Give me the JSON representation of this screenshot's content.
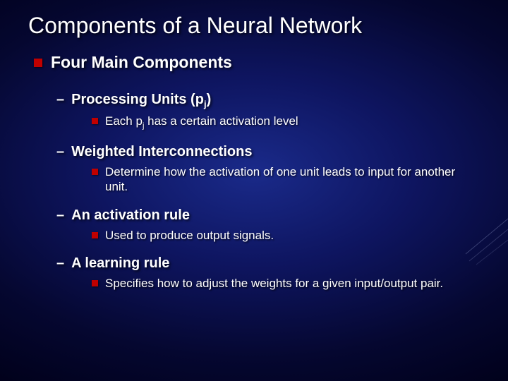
{
  "title": "Components of a Neural Network",
  "heading": "Four Main Components",
  "items": [
    {
      "label": "Processing Units (p<sub>j</sub>)",
      "detail": "Each p<sub>j</sub> has a certain activation level"
    },
    {
      "label": "Weighted Interconnections",
      "detail": "Determine how the activation of one unit leads to input for another unit."
    },
    {
      "label": "An activation rule",
      "detail": "Used to produce output signals."
    },
    {
      "label": "A learning rule",
      "detail": "Specifies how to adjust the weights for a given input/output pair."
    }
  ],
  "colors": {
    "bullet": "#c00000",
    "text": "#ffffff",
    "bg_center": "#1a2a8a",
    "bg_edge": "#000018"
  },
  "fonts": {
    "title_size": 32,
    "heading_size": 23,
    "sub_size": 20,
    "detail_size": 17
  }
}
